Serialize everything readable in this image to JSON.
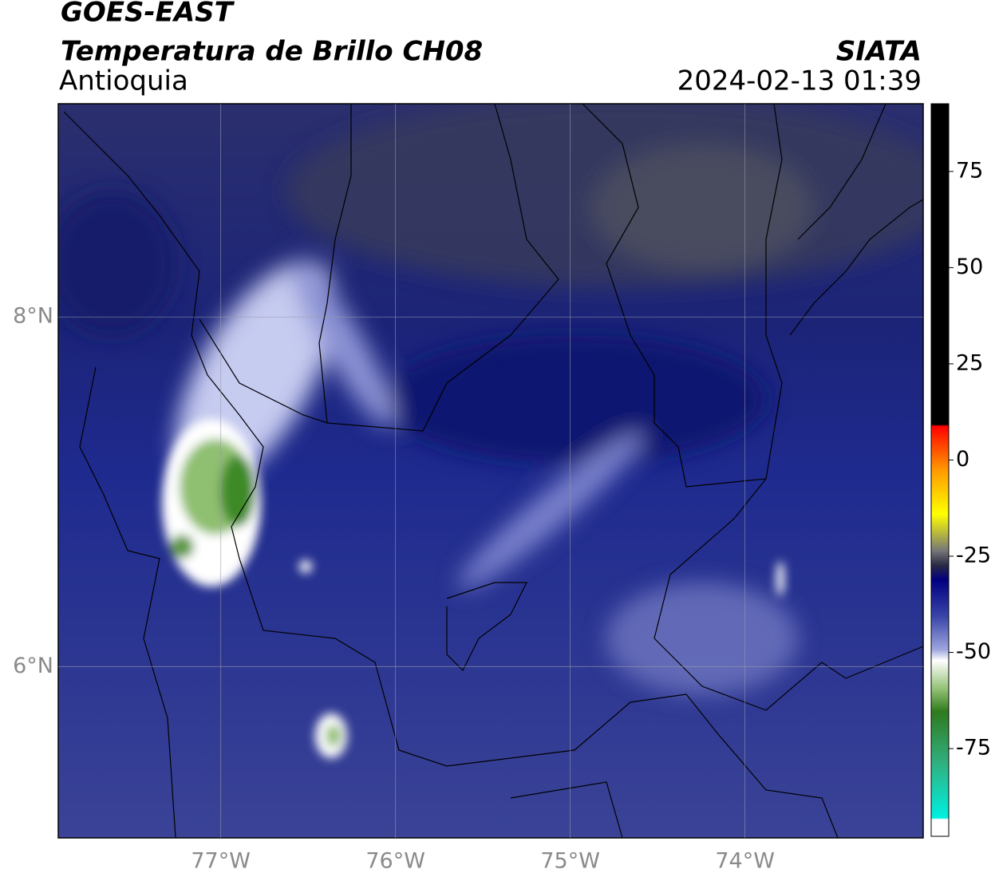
{
  "header": {
    "satellite": "GOES-EAST",
    "product": "Temperatura de Brillo CH08",
    "region": "Antioquia",
    "source": "SIATA",
    "datetime": "2024-02-13 01:39"
  },
  "map": {
    "xlim": [
      -77.93,
      -72.98
    ],
    "ylim": [
      5.02,
      9.22
    ],
    "lon_ticks": [
      {
        "value": -77,
        "label": "77°W"
      },
      {
        "value": -76,
        "label": "76°W"
      },
      {
        "value": -75,
        "label": "75°W"
      },
      {
        "value": -74,
        "label": "74°W"
      }
    ],
    "lat_ticks": [
      {
        "value": 8,
        "label": "8°N"
      },
      {
        "value": 6,
        "label": "6°N"
      }
    ]
  },
  "colorbar": {
    "lim": [
      -97.8,
      92.6
    ],
    "ticks": [
      75,
      50,
      25,
      0,
      -25,
      -50,
      -75
    ]
  }
}
